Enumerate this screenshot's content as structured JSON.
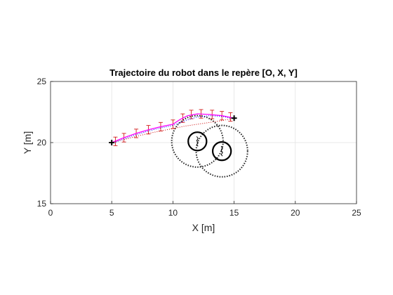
{
  "chart_data": {
    "type": "line",
    "title": "Trajectoire du robot dans le repère [O, X, Y]",
    "xlabel": "X [m]",
    "ylabel": "Y [m]",
    "xlim": [
      0,
      25
    ],
    "ylim": [
      15,
      25
    ],
    "xticks": [
      "0",
      "5",
      "10",
      "15",
      "20",
      "25"
    ],
    "yticks": [
      "15",
      "20",
      "25"
    ],
    "grid": true,
    "aspect": "equal",
    "series": [
      {
        "style": "solid",
        "color": "#ff00ff",
        "x": [
          5,
          6,
          7,
          8,
          9,
          10,
          10.6,
          11.2,
          12,
          13,
          14,
          15
        ],
        "y": [
          20.0,
          20.4,
          20.75,
          21.05,
          21.3,
          21.5,
          21.9,
          22.2,
          22.35,
          22.3,
          22.2,
          22.0
        ]
      },
      {
        "style": "dotted",
        "color": "#cc0000",
        "x": [
          5,
          6,
          7,
          8,
          9,
          10,
          11,
          12,
          13,
          14,
          15
        ],
        "y": [
          20.0,
          20.25,
          20.5,
          20.75,
          20.95,
          21.15,
          21.35,
          21.5,
          21.65,
          21.8,
          22.0
        ]
      },
      {
        "style": "dotted",
        "color": "#0000ff",
        "x": [
          5,
          6,
          7,
          8,
          9,
          10,
          11,
          12,
          13,
          14,
          15
        ],
        "y": [
          19.9,
          20.3,
          20.65,
          20.95,
          21.2,
          21.4,
          21.8,
          22.1,
          22.2,
          22.15,
          21.95
        ]
      }
    ],
    "error_bars": {
      "color": "#cc0000",
      "x": [
        5.3,
        6,
        7,
        8,
        9,
        10,
        10.8,
        11.5,
        12.3,
        13.2,
        14,
        14.7
      ],
      "y": [
        20.1,
        20.4,
        20.75,
        21.05,
        21.3,
        21.5,
        22.0,
        22.3,
        22.35,
        22.3,
        22.2,
        22.1
      ],
      "err": [
        0.35,
        0.35,
        0.35,
        0.35,
        0.35,
        0.35,
        0.35,
        0.35,
        0.35,
        0.35,
        0.35,
        0.35
      ]
    },
    "endpoints": [
      {
        "x": 5,
        "y": 20,
        "marker": "+"
      },
      {
        "x": 15,
        "y": 22,
        "marker": "+"
      }
    ],
    "landmarks": [
      {
        "x": 12,
        "y": 20.1,
        "r": 0.75,
        "range_r": 2.1
      },
      {
        "x": 14,
        "y": 19.3,
        "r": 0.75,
        "range_r": 2.1
      }
    ]
  }
}
